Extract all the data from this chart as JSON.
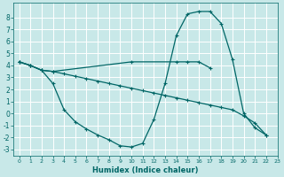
{
  "xlabel": "Humidex (Indice chaleur)",
  "background_color": "#c8e8e8",
  "grid_color": "#ffffff",
  "line_color": "#006666",
  "xlim": [
    -0.5,
    23
  ],
  "ylim": [
    -3.5,
    9.2
  ],
  "yticks": [
    -3,
    -2,
    -1,
    0,
    1,
    2,
    3,
    4,
    5,
    6,
    7,
    8
  ],
  "xticks": [
    0,
    1,
    2,
    3,
    4,
    5,
    6,
    7,
    8,
    9,
    10,
    11,
    12,
    13,
    14,
    15,
    16,
    17,
    18,
    19,
    20,
    21,
    22,
    23
  ],
  "line1_x": [
    0,
    1,
    2,
    3,
    10,
    14,
    15,
    16,
    17
  ],
  "line1_y": [
    4.3,
    4.0,
    3.6,
    3.5,
    4.3,
    4.3,
    4.3,
    4.3,
    3.8
  ],
  "line2_x": [
    0,
    1,
    2,
    3,
    4,
    5,
    6,
    7,
    8,
    9,
    10,
    11,
    12,
    13,
    14,
    15,
    16,
    17,
    18,
    19,
    20,
    21,
    22
  ],
  "line2_y": [
    4.3,
    4.0,
    3.6,
    2.5,
    0.3,
    -0.7,
    -1.3,
    -1.8,
    -2.2,
    -2.7,
    -2.8,
    -2.5,
    -0.5,
    2.5,
    6.5,
    8.3,
    8.5,
    8.5,
    7.5,
    4.5,
    0.0,
    -1.2,
    -1.8
  ],
  "line3_x": [
    0,
    1,
    2,
    3,
    4,
    5,
    6,
    7,
    8,
    9,
    10,
    11,
    12,
    13,
    14,
    15,
    16,
    17,
    18,
    19,
    20,
    21,
    22
  ],
  "line3_y": [
    4.3,
    4.0,
    3.6,
    3.5,
    3.3,
    3.1,
    2.9,
    2.7,
    2.5,
    2.3,
    2.1,
    1.9,
    1.7,
    1.5,
    1.3,
    1.1,
    0.9,
    0.7,
    0.5,
    0.3,
    -0.2,
    -0.8,
    -1.8
  ]
}
